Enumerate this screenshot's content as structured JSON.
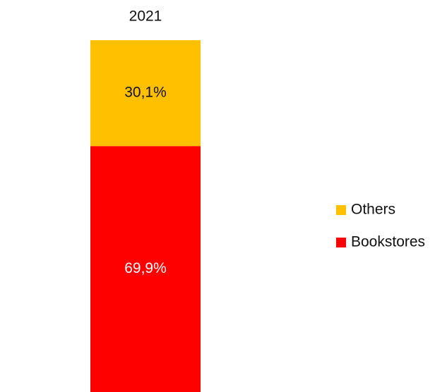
{
  "chart_data": {
    "type": "stacked_bar",
    "categories": [
      "2021"
    ],
    "series": [
      {
        "name": "Bookstores",
        "color": "#ff0000",
        "values": [
          69.9
        ],
        "value_labels": [
          "69,9%"
        ],
        "label_color": "#ffffff"
      },
      {
        "name": "Others",
        "color": "#ffc000",
        "values": [
          30.1
        ],
        "value_labels": [
          "30,1%"
        ],
        "label_color": "#111111"
      }
    ],
    "legend": "right"
  }
}
